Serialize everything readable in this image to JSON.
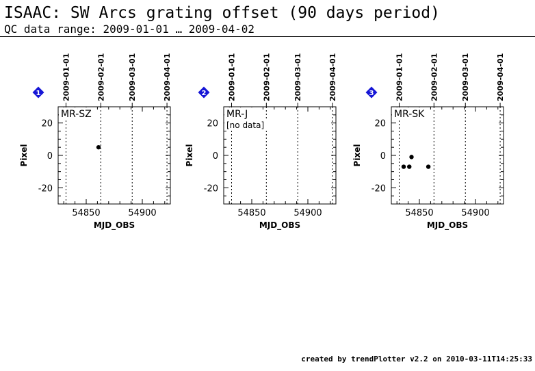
{
  "page": {
    "title": "ISAAC: SW Arcs grating offset (90 days period)",
    "subtitle": "QC data range: 2009-01-01 … 2009-04-02",
    "footer": "created by trendPlotter v2.2 on 2010-03-11T14:25:33"
  },
  "colors": {
    "marker": "#1515d6",
    "points": "#000000",
    "axes": "#000000"
  },
  "chart_data": [
    {
      "type": "scatter",
      "panel_number": "1",
      "label": "MR-SZ",
      "note": "",
      "xlabel": "MJD_OBS",
      "ylabel": "Pixel",
      "xlim": [
        54825,
        54925
      ],
      "ylim": [
        -30,
        30
      ],
      "xticks": [
        54850,
        54900
      ],
      "yticks": [
        20,
        0,
        -20
      ],
      "date_ticks": [
        {
          "label": "2009-01-01",
          "mjd": 54832
        },
        {
          "label": "2009-02-01",
          "mjd": 54863
        },
        {
          "label": "2009-03-01",
          "mjd": 54891
        },
        {
          "label": "2009-04-01",
          "mjd": 54922
        }
      ],
      "series": [
        {
          "x": [
            54861
          ],
          "y": [
            5
          ]
        }
      ]
    },
    {
      "type": "scatter",
      "panel_number": "2",
      "label": "MR-J",
      "note": "[no data]",
      "xlabel": "MJD_OBS",
      "ylabel": "Pixel",
      "xlim": [
        54825,
        54925
      ],
      "ylim": [
        -30,
        30
      ],
      "xticks": [
        54850,
        54900
      ],
      "yticks": [
        20,
        0,
        -20
      ],
      "date_ticks": [
        {
          "label": "2009-01-01",
          "mjd": 54832
        },
        {
          "label": "2009-02-01",
          "mjd": 54863
        },
        {
          "label": "2009-03-01",
          "mjd": 54891
        },
        {
          "label": "2009-04-01",
          "mjd": 54922
        }
      ],
      "series": [
        {
          "x": [],
          "y": []
        }
      ]
    },
    {
      "type": "scatter",
      "panel_number": "3",
      "label": "MR-SK",
      "note": "",
      "xlabel": "MJD_OBS",
      "ylabel": "Pixel",
      "xlim": [
        54825,
        54925
      ],
      "ylim": [
        -30,
        30
      ],
      "xticks": [
        54850,
        54900
      ],
      "yticks": [
        20,
        0,
        -20
      ],
      "date_ticks": [
        {
          "label": "2009-01-01",
          "mjd": 54832
        },
        {
          "label": "2009-02-01",
          "mjd": 54863
        },
        {
          "label": "2009-03-01",
          "mjd": 54891
        },
        {
          "label": "2009-04-01",
          "mjd": 54922
        }
      ],
      "series": [
        {
          "x": [
            54836,
            54841,
            54843,
            54858
          ],
          "y": [
            -7,
            -7,
            -1,
            -7
          ]
        }
      ]
    }
  ]
}
